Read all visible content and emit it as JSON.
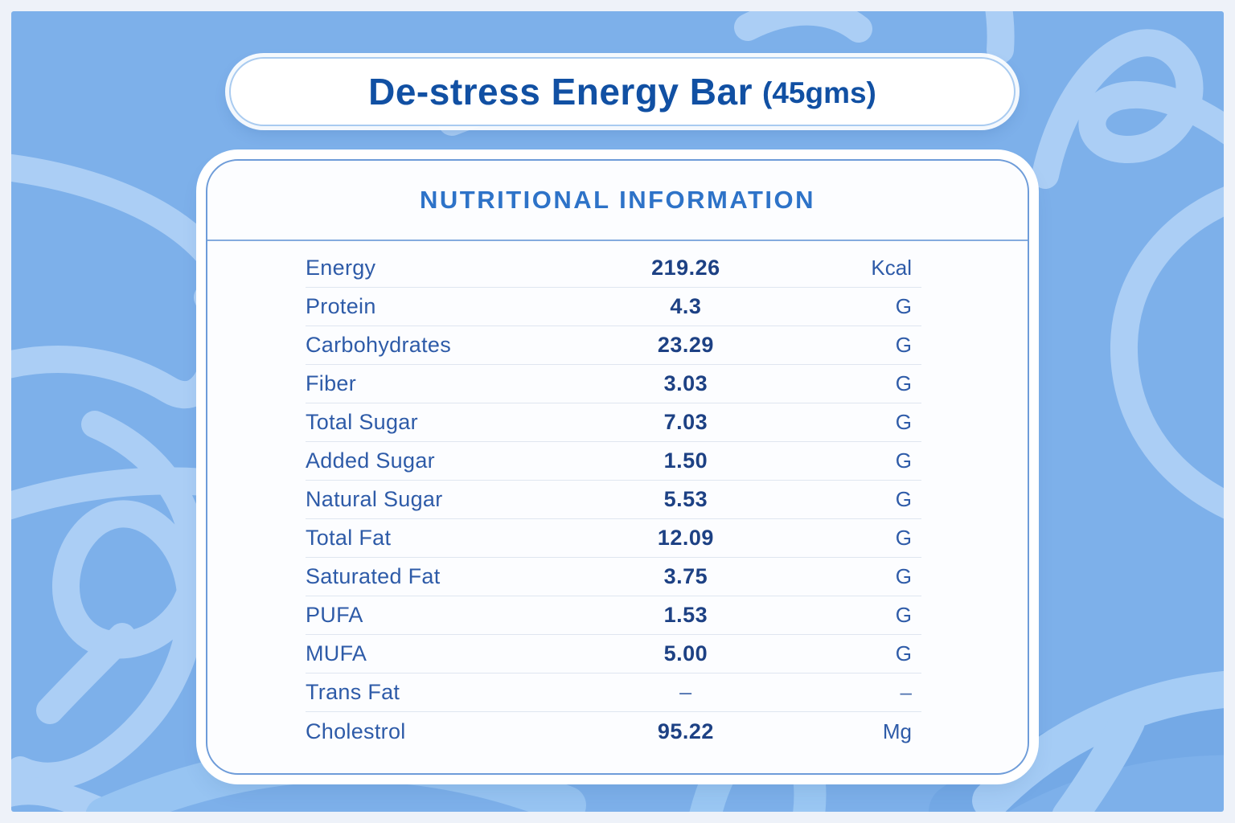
{
  "header": {
    "product_name": "De-stress Energy Bar",
    "weight_label": "(45gms)"
  },
  "card": {
    "heading": "NUTRITIONAL INFORMATION",
    "rows": [
      {
        "label": "Energy",
        "value": "219.26",
        "unit": "Kcal"
      },
      {
        "label": "Protein",
        "value": "4.3",
        "unit": "G"
      },
      {
        "label": "Carbohydrates",
        "value": "23.29",
        "unit": "G"
      },
      {
        "label": "Fiber",
        "value": "3.03",
        "unit": "G"
      },
      {
        "label": "Total Sugar",
        "value": "7.03",
        "unit": "G"
      },
      {
        "label": "Added Sugar",
        "value": "1.50",
        "unit": "G"
      },
      {
        "label": "Natural Sugar",
        "value": "5.53",
        "unit": "G"
      },
      {
        "label": "Total Fat",
        "value": "12.09",
        "unit": "G"
      },
      {
        "label": "Saturated Fat",
        "value": "3.75",
        "unit": "G"
      },
      {
        "label": "PUFA",
        "value": "1.53",
        "unit": "G"
      },
      {
        "label": "MUFA",
        "value": "5.00",
        "unit": "G"
      },
      {
        "label": "Trans Fat",
        "value": "–",
        "unit": "–"
      },
      {
        "label": "Cholestrol",
        "value": "95.22",
        "unit": "Mg"
      }
    ]
  },
  "colors": {
    "frame_bg": "#eef2f9",
    "background_blue": "#7db0ea",
    "doodle_light": "#abcef5",
    "doodle_mid": "#9ac7f3",
    "title_blue": "#1150a3",
    "heading_blue": "#2e73c8",
    "label_blue": "#2e5ba8",
    "value_blue": "#1d4184",
    "card_border": "#6e9cd9"
  }
}
